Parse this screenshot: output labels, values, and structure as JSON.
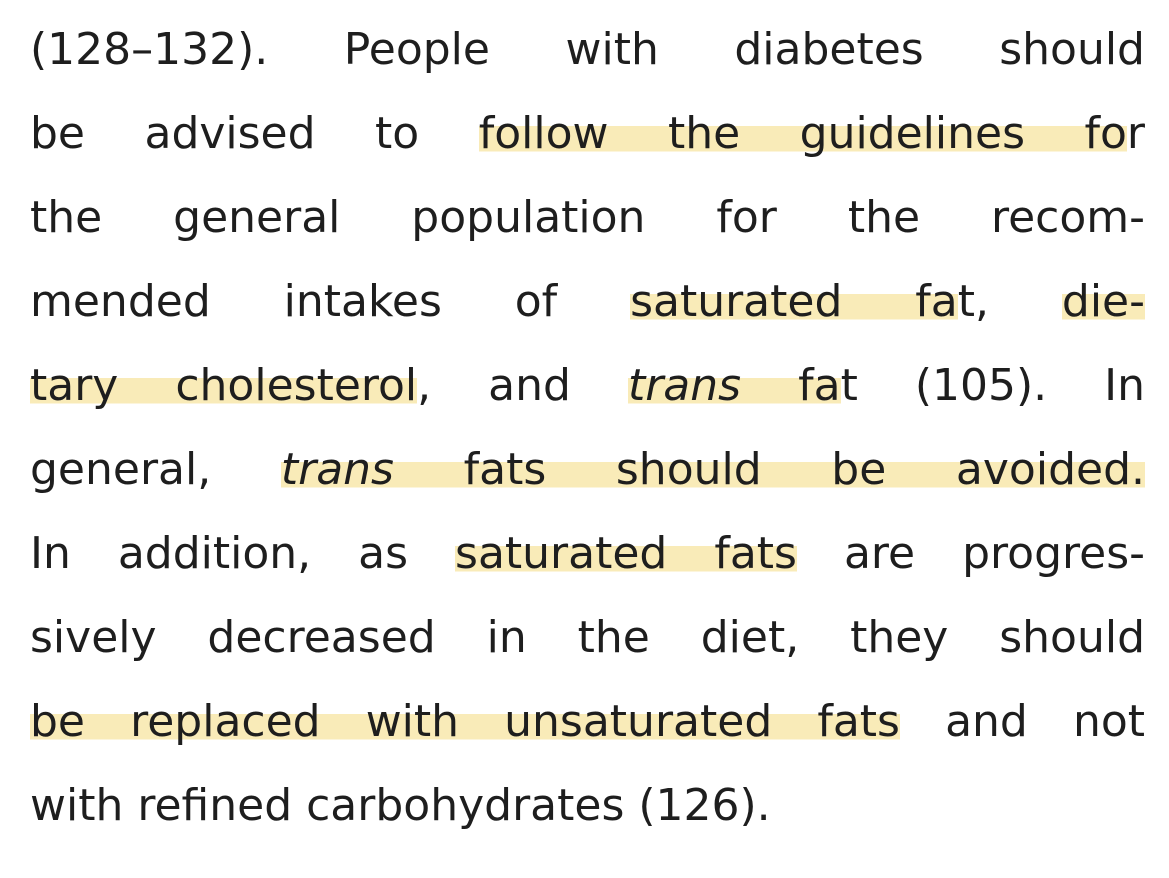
{
  "lines": [
    {
      "segments": [
        {
          "text": "(128–132). People with diabetes should"
        }
      ]
    },
    {
      "segments": [
        {
          "text": "be advised to "
        },
        {
          "text": "follow the guidelines fo",
          "highlight": true
        },
        {
          "text": "r"
        }
      ]
    },
    {
      "segments": [
        {
          "text": "the general population for the recom-"
        }
      ]
    },
    {
      "segments": [
        {
          "text": "mended intakes of "
        },
        {
          "text": "saturated fa",
          "highlight": true
        },
        {
          "text": "t, "
        },
        {
          "text": "die-",
          "highlight": true
        }
      ]
    },
    {
      "segments": [
        {
          "text": "tary cholesterol",
          "highlight": true
        },
        {
          "text": ", and "
        },
        {
          "text": "trans",
          "highlight": true,
          "italic": true
        },
        {
          "text": " fa",
          "highlight": true
        },
        {
          "text": "t (105). In"
        }
      ]
    },
    {
      "segments": [
        {
          "text": "general, "
        },
        {
          "text": "trans",
          "highlight": true,
          "italic": true
        },
        {
          "text": " fats should be avoided.",
          "highlight": true
        }
      ]
    },
    {
      "segments": [
        {
          "text": "In addition, as "
        },
        {
          "text": "saturated fats",
          "highlight": true
        },
        {
          "text": " are progres-"
        }
      ]
    },
    {
      "segments": [
        {
          "text": "sively decreased in the diet, they should"
        }
      ]
    },
    {
      "segments": [
        {
          "text": "be replaced with unsaturated fats",
          "highlight": true
        },
        {
          "text": " and not"
        }
      ]
    },
    {
      "segments": [
        {
          "text": "with refined carbohydrates (126)."
        }
      ]
    }
  ]
}
